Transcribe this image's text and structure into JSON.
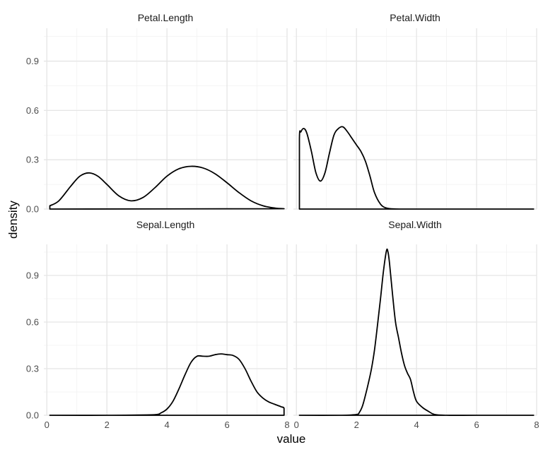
{
  "chart_data": {
    "type": "line",
    "xlabel": "value",
    "ylabel": "density",
    "xlim": [
      -0.1,
      8.0
    ],
    "ylim": [
      0,
      1.1
    ],
    "x_ticks": [
      0,
      2,
      4,
      6,
      8
    ],
    "y_ticks": [
      0.0,
      0.3,
      0.6,
      0.9
    ],
    "x_tick_labels": [
      "0",
      "2",
      "4",
      "6",
      "8"
    ],
    "y_tick_labels": [
      "0.0",
      "0.3",
      "0.6",
      "0.9"
    ],
    "grid": true,
    "panels": [
      {
        "title": "Petal.Length",
        "x": [
          0.1,
          0.4,
          0.8,
          1.1,
          1.4,
          1.7,
          2.0,
          2.4,
          2.8,
          3.2,
          3.6,
          4.0,
          4.4,
          4.8,
          5.2,
          5.6,
          6.0,
          6.4,
          6.8,
          7.2,
          7.6,
          7.9
        ],
        "y": [
          0.02,
          0.05,
          0.14,
          0.2,
          0.22,
          0.2,
          0.15,
          0.08,
          0.05,
          0.07,
          0.13,
          0.2,
          0.245,
          0.26,
          0.25,
          0.215,
          0.16,
          0.1,
          0.05,
          0.02,
          0.006,
          0.002
        ]
      },
      {
        "title": "Petal.Width",
        "x": [
          0.1,
          0.1,
          0.15,
          0.25,
          0.35,
          0.5,
          0.65,
          0.8,
          0.95,
          1.1,
          1.25,
          1.4,
          1.55,
          1.7,
          1.85,
          2.0,
          2.15,
          2.3,
          2.45,
          2.6,
          2.8,
          3.0,
          3.3,
          4.0,
          5.0,
          6.0,
          7.0,
          7.9
        ],
        "y": [
          0.0,
          0.43,
          0.47,
          0.49,
          0.46,
          0.35,
          0.22,
          0.17,
          0.22,
          0.34,
          0.45,
          0.49,
          0.5,
          0.47,
          0.43,
          0.39,
          0.35,
          0.29,
          0.2,
          0.1,
          0.03,
          0.006,
          0.0005,
          0.0,
          0.0,
          0.0,
          0.0,
          0.0
        ]
      },
      {
        "title": "Sepal.Length",
        "x": [
          0.1,
          2.0,
          3.6,
          3.8,
          4.0,
          4.2,
          4.4,
          4.6,
          4.8,
          5.0,
          5.2,
          5.4,
          5.6,
          5.8,
          6.0,
          6.2,
          6.4,
          6.6,
          6.8,
          7.0,
          7.2,
          7.4,
          7.6,
          7.8,
          7.9,
          7.9
        ],
        "y": [
          0.0,
          0.0,
          0.004,
          0.015,
          0.04,
          0.09,
          0.17,
          0.26,
          0.34,
          0.38,
          0.38,
          0.38,
          0.39,
          0.395,
          0.39,
          0.385,
          0.36,
          0.3,
          0.22,
          0.15,
          0.11,
          0.085,
          0.07,
          0.055,
          0.045,
          0.0
        ]
      },
      {
        "title": "Sepal.Width",
        "x": [
          0.1,
          1.5,
          2.0,
          2.1,
          2.2,
          2.3,
          2.4,
          2.5,
          2.6,
          2.7,
          2.8,
          2.9,
          3.0,
          3.05,
          3.1,
          3.2,
          3.3,
          3.4,
          3.5,
          3.6,
          3.7,
          3.8,
          3.9,
          4.0,
          4.2,
          4.4,
          4.6,
          5.0,
          6.0,
          7.9
        ],
        "y": [
          0.0,
          0.0,
          0.005,
          0.02,
          0.06,
          0.13,
          0.21,
          0.3,
          0.42,
          0.58,
          0.75,
          0.93,
          1.06,
          1.05,
          0.98,
          0.78,
          0.6,
          0.5,
          0.4,
          0.32,
          0.27,
          0.23,
          0.15,
          0.09,
          0.05,
          0.025,
          0.005,
          0.0,
          0.0,
          0.0
        ]
      }
    ]
  }
}
